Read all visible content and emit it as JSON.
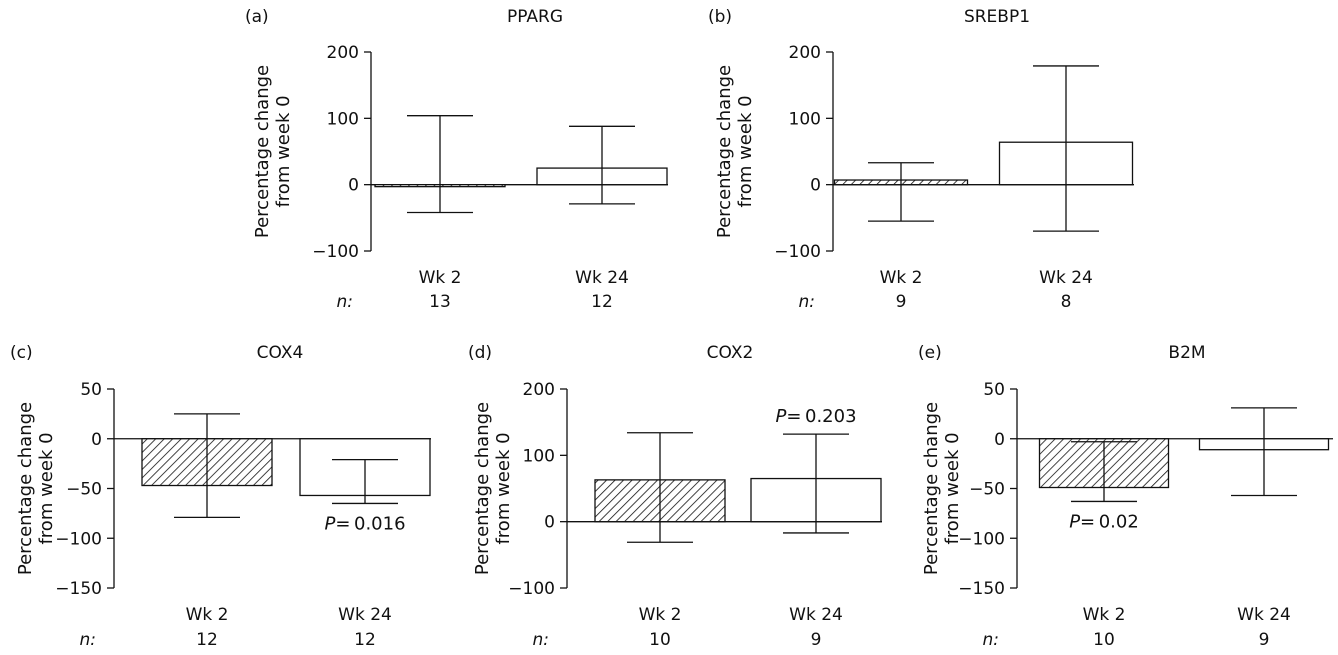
{
  "n_prefix": "n:",
  "chart_data": [
    {
      "panel": "(a)",
      "title": "PPARG",
      "type": "bar",
      "ylabel_lines": [
        "Percentage change",
        "from week 0"
      ],
      "ylim": [
        -100,
        200
      ],
      "yticks": [
        -100,
        0,
        100,
        200
      ],
      "ytick_labels": [
        "−100",
        "0",
        "100",
        "200"
      ],
      "categories": [
        "Wk 2",
        "Wk 24"
      ],
      "n": [
        "13",
        "12"
      ],
      "values": [
        -3,
        25
      ],
      "err_low": [
        -42,
        -29
      ],
      "err_high": [
        104,
        88
      ],
      "fill": [
        "hatched",
        "open"
      ],
      "pvalues": [
        null,
        null
      ]
    },
    {
      "panel": "(b)",
      "title": "SREBP1",
      "type": "bar",
      "ylabel_lines": [
        "Percentage change",
        "from week 0"
      ],
      "ylim": [
        -100,
        200
      ],
      "yticks": [
        -100,
        0,
        100,
        200
      ],
      "ytick_labels": [
        "−100",
        "0",
        "100",
        "200"
      ],
      "categories": [
        "Wk 2",
        "Wk 24"
      ],
      "n": [
        "9",
        "8"
      ],
      "values": [
        7,
        64
      ],
      "err_low": [
        -55,
        -70
      ],
      "err_high": [
        33,
        179
      ],
      "fill": [
        "hatched",
        "open"
      ],
      "pvalues": [
        null,
        null
      ]
    },
    {
      "panel": "(c)",
      "title": "COX4",
      "type": "bar",
      "ylabel_lines": [
        "Percentage change",
        "from week 0"
      ],
      "ylim": [
        -150,
        50
      ],
      "yticks": [
        -150,
        -100,
        -50,
        0,
        50
      ],
      "ytick_labels": [
        "−150",
        "−100",
        "−50",
        "0",
        "50"
      ],
      "categories": [
        "Wk 2",
        "Wk 24"
      ],
      "n": [
        "12",
        "12"
      ],
      "values": [
        -47,
        -57
      ],
      "err_low": [
        -79,
        -65
      ],
      "err_high": [
        25,
        -21
      ],
      "fill": [
        "hatched",
        "open"
      ],
      "pvalues": [
        null,
        {
          "p": "P",
          "value": "= 0.016"
        }
      ]
    },
    {
      "panel": "(d)",
      "title": "COX2",
      "type": "bar",
      "ylabel_lines": [
        "Percentage change",
        "from week 0"
      ],
      "ylim": [
        -100,
        200
      ],
      "yticks": [
        -100,
        0,
        100,
        200
      ],
      "ytick_labels": [
        "−100",
        "0",
        "100",
        "200"
      ],
      "categories": [
        "Wk 2",
        "Wk 24"
      ],
      "n": [
        "10",
        "9"
      ],
      "values": [
        63,
        65
      ],
      "err_low": [
        -31,
        -17
      ],
      "err_high": [
        134,
        132
      ],
      "fill": [
        "hatched",
        "open"
      ],
      "pvalues": [
        null,
        {
          "p": "P",
          "value": "= 0.203"
        }
      ]
    },
    {
      "panel": "(e)",
      "title": "B2M",
      "type": "bar",
      "ylabel_lines": [
        "Percentage change",
        "from week 0"
      ],
      "ylim": [
        -150,
        50
      ],
      "yticks": [
        -150,
        -100,
        -50,
        0,
        50
      ],
      "ytick_labels": [
        "−150",
        "−100",
        "−50",
        "0",
        "50"
      ],
      "categories": [
        "Wk 2",
        "Wk 24"
      ],
      "n": [
        "10",
        "9"
      ],
      "values": [
        -49,
        -11
      ],
      "err_low": [
        -63,
        -57
      ],
      "err_high": [
        -3,
        31
      ],
      "fill": [
        "hatched",
        "open"
      ],
      "pvalues": [
        {
          "p": "P",
          "value": "= 0.02"
        },
        null
      ]
    }
  ]
}
